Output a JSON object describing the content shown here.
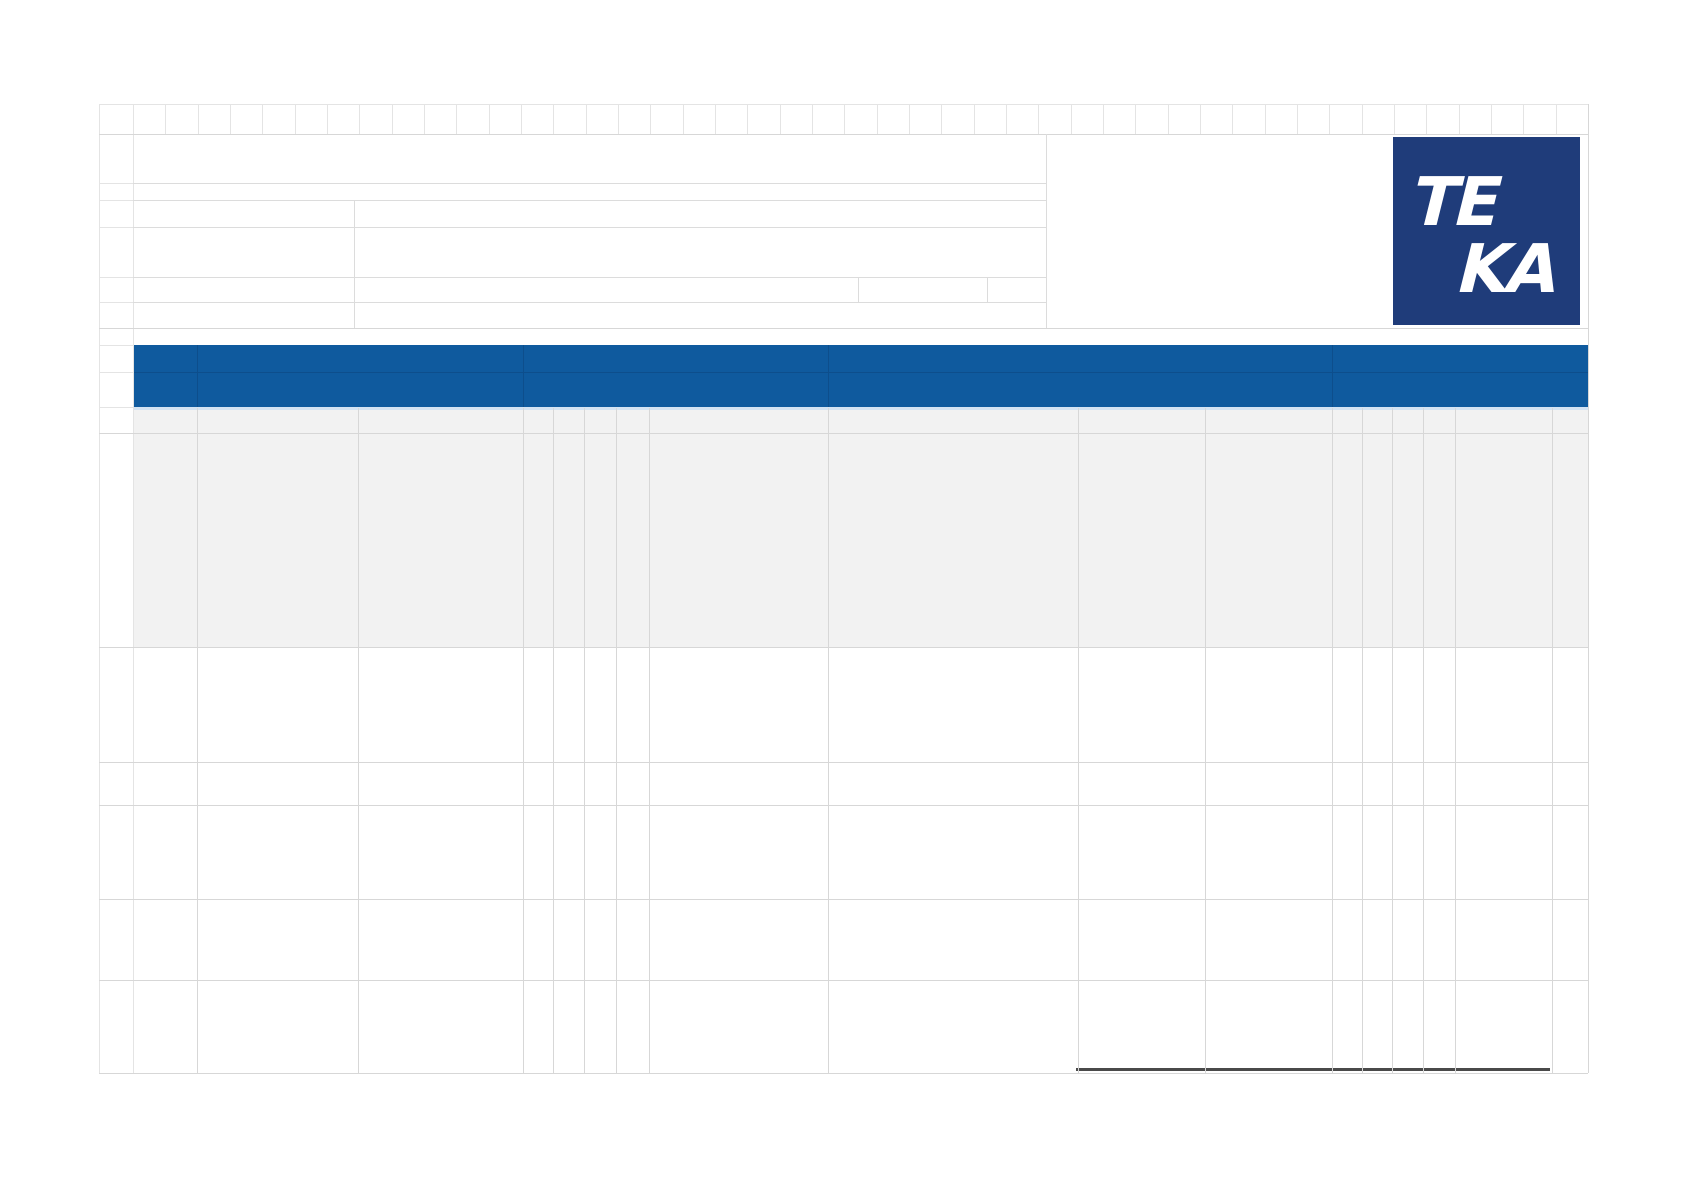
{
  "logo": {
    "top_text": "TE",
    "bottom_text": "KA",
    "background": "#1f3c7a",
    "letter_color": "#ffffff"
  },
  "colors": {
    "page_background": "#ffffff",
    "header_band": "#0f5a9e",
    "header_band_divider": "#0d4e8c",
    "first_row_band_fill": "#f2f2f2",
    "header_underline": "#d3e3f3",
    "grid_line": "#d7d7d7",
    "strip_line": "#e4e4e4",
    "form_line": "#dcdcdc",
    "bottom_rule": "#4a4a4a"
  }
}
